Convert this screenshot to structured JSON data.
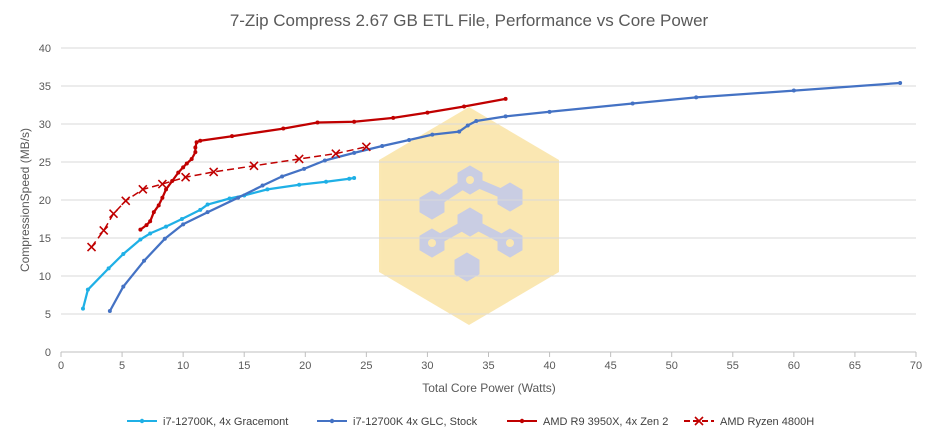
{
  "chart_data": {
    "type": "line",
    "title": "7-Zip Compress 2.67 GB ETL File, Performance vs Core Power",
    "xlabel": "Total Core Power (Watts)",
    "ylabel": "CompressionSpeed (MB/s)",
    "xlim": [
      0,
      70
    ],
    "ylim": [
      0,
      40
    ],
    "xticks": [
      0,
      5,
      10,
      15,
      20,
      25,
      30,
      35,
      40,
      45,
      50,
      55,
      60,
      65,
      70
    ],
    "yticks": [
      0,
      5,
      10,
      15,
      20,
      25,
      30,
      35,
      40
    ],
    "grid": "horizontal",
    "legend": "bottom",
    "series": [
      {
        "name": "i7-12700K, 4x Gracemont",
        "color": "#1fb0e6",
        "marker": "dot",
        "dashed": false,
        "points": [
          [
            1.8,
            5.7
          ],
          [
            2.2,
            8.2
          ],
          [
            3.9,
            11.0
          ],
          [
            5.1,
            12.9
          ],
          [
            6.5,
            14.8
          ],
          [
            7.3,
            15.6
          ],
          [
            8.6,
            16.5
          ],
          [
            9.9,
            17.5
          ],
          [
            11.4,
            18.7
          ],
          [
            12.0,
            19.4
          ],
          [
            13.8,
            20.2
          ],
          [
            15.0,
            20.6
          ],
          [
            16.9,
            21.4
          ],
          [
            19.5,
            22.0
          ],
          [
            21.7,
            22.4
          ],
          [
            23.6,
            22.8
          ],
          [
            24.0,
            22.9
          ]
        ]
      },
      {
        "name": "i7-12700K 4x GLC, Stock",
        "color": "#4472c4",
        "marker": "dot",
        "dashed": false,
        "points": [
          [
            4.0,
            5.4
          ],
          [
            5.1,
            8.6
          ],
          [
            6.8,
            12.0
          ],
          [
            8.5,
            14.9
          ],
          [
            10.0,
            16.8
          ],
          [
            12.0,
            18.4
          ],
          [
            14.5,
            20.3
          ],
          [
            16.5,
            21.9
          ],
          [
            18.1,
            23.1
          ],
          [
            19.9,
            24.1
          ],
          [
            21.6,
            25.2
          ],
          [
            24.0,
            26.2
          ],
          [
            26.3,
            27.1
          ],
          [
            28.5,
            27.9
          ],
          [
            30.4,
            28.6
          ],
          [
            32.6,
            29.0
          ],
          [
            33.3,
            29.8
          ],
          [
            34.0,
            30.4
          ],
          [
            36.4,
            31.0
          ],
          [
            40.0,
            31.6
          ],
          [
            46.8,
            32.7
          ],
          [
            52.0,
            33.5
          ],
          [
            60.0,
            34.4
          ],
          [
            68.7,
            35.4
          ]
        ]
      },
      {
        "name": "AMD R9 3950X, 4x Zen 2",
        "color": "#c00000",
        "marker": "dot",
        "dashed": false,
        "points": [
          [
            6.5,
            16.1
          ],
          [
            7.0,
            16.7
          ],
          [
            7.3,
            17.2
          ],
          [
            7.6,
            18.4
          ],
          [
            8.0,
            19.3
          ],
          [
            8.3,
            20.3
          ],
          [
            8.6,
            21.4
          ],
          [
            9.1,
            22.5
          ],
          [
            9.6,
            23.6
          ],
          [
            10.0,
            24.3
          ],
          [
            10.3,
            24.8
          ],
          [
            10.7,
            25.4
          ],
          [
            11.0,
            26.3
          ],
          [
            11.0,
            26.9
          ],
          [
            11.1,
            27.6
          ],
          [
            11.4,
            27.8
          ],
          [
            14.0,
            28.4
          ],
          [
            18.2,
            29.4
          ],
          [
            21.0,
            30.2
          ],
          [
            24.0,
            30.3
          ],
          [
            27.2,
            30.8
          ],
          [
            30.0,
            31.5
          ],
          [
            33.0,
            32.3
          ],
          [
            36.4,
            33.3
          ]
        ]
      },
      {
        "name": "AMD Ryzen 4800H",
        "color": "#c00000",
        "marker": "x",
        "dashed": true,
        "points": [
          [
            2.5,
            13.8
          ],
          [
            3.5,
            16.0
          ],
          [
            4.3,
            18.2
          ],
          [
            5.3,
            19.9
          ],
          [
            6.7,
            21.4
          ],
          [
            8.3,
            22.1
          ],
          [
            10.2,
            23.0
          ],
          [
            12.5,
            23.7
          ],
          [
            15.8,
            24.5
          ],
          [
            19.5,
            25.4
          ],
          [
            22.5,
            26.1
          ],
          [
            25.0,
            27.0
          ]
        ]
      }
    ]
  }
}
